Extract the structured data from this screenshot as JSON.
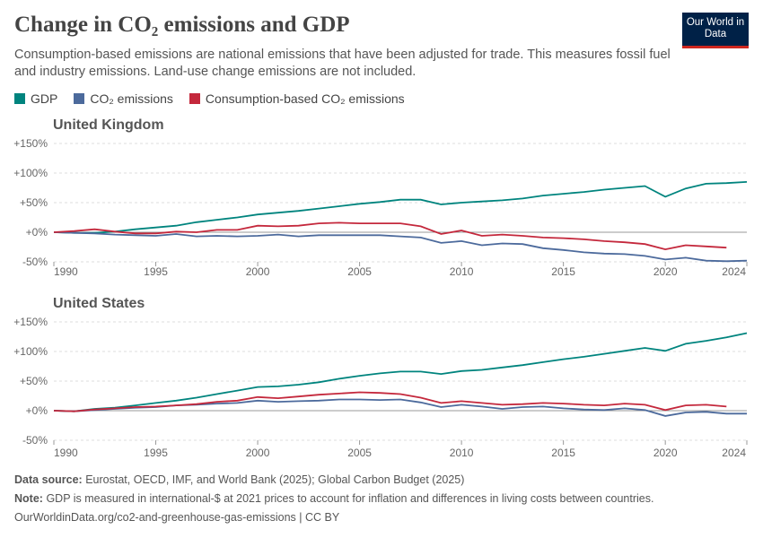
{
  "title": "Change in CO₂ emissions and GDP",
  "subtitle": "Consumption-based emissions are national emissions that have been adjusted for trade. This measures fossil fuel and industry emissions. Land-use change emissions are not included.",
  "logo": "Our World in Data",
  "footer": {
    "source_label": "Data source:",
    "source": "Eurostat, OECD, IMF, and World Bank (2025); Global Carbon Budget (2025)",
    "note_label": "Note:",
    "note": "GDP is measured in international-$ at 2021 prices to account for inflation and differences in living costs between countries.",
    "url": "OurWorldinData.org/co2-and-greenhouse-gas-emissions | CC BY"
  },
  "chart_data": [
    {
      "type": "line",
      "title": "United Kingdom",
      "ylim": [
        -50,
        150
      ],
      "yticks": [
        "+150%",
        "+100%",
        "+50%",
        "+0%",
        "-50%"
      ],
      "xticks": [
        "1990",
        "1995",
        "2000",
        "2005",
        "2010",
        "2015",
        "2020",
        "2024"
      ],
      "xstart": 1990,
      "series": [
        {
          "name": "GDP",
          "color": "#00847e",
          "values": [
            0,
            -1,
            -1,
            1,
            5,
            8,
            11,
            17,
            21,
            25,
            30,
            33,
            36,
            40,
            44,
            48,
            51,
            55,
            55,
            47,
            50,
            52,
            54,
            57,
            62,
            65,
            68,
            72,
            75,
            78,
            60,
            74,
            82,
            83,
            85
          ]
        },
        {
          "name": "CO₂ emissions",
          "color": "#4c6a9c",
          "values": [
            0,
            -1,
            -2,
            -4,
            -5,
            -6,
            -3,
            -7,
            -6,
            -7,
            -6,
            -4,
            -7,
            -5,
            -5,
            -5,
            -5,
            -7,
            -9,
            -18,
            -15,
            -22,
            -19,
            -20,
            -27,
            -30,
            -34,
            -36,
            -37,
            -40,
            -46,
            -43,
            -48,
            -49,
            -48
          ]
        },
        {
          "name": "Consumption-based CO₂ emissions",
          "color": "#c4283c",
          "values": [
            0,
            2,
            5,
            1,
            -2,
            -2,
            1,
            0,
            4,
            4,
            11,
            10,
            11,
            15,
            16,
            15,
            15,
            15,
            10,
            -3,
            3,
            -6,
            -4,
            -6,
            -9,
            -10,
            -12,
            -15,
            -17,
            -20,
            -29,
            -22,
            -24,
            -26
          ]
        }
      ]
    },
    {
      "type": "line",
      "title": "United States",
      "ylim": [
        -50,
        150
      ],
      "yticks": [
        "+150%",
        "+100%",
        "+50%",
        "+0%",
        "-50%"
      ],
      "xticks": [
        "1990",
        "1995",
        "2000",
        "2005",
        "2010",
        "2015",
        "2020",
        "2024"
      ],
      "xstart": 1990,
      "series": [
        {
          "name": "GDP",
          "color": "#00847e",
          "values": [
            0,
            -1,
            3,
            5,
            9,
            13,
            17,
            22,
            28,
            34,
            40,
            41,
            44,
            48,
            54,
            59,
            63,
            66,
            66,
            62,
            67,
            69,
            73,
            77,
            82,
            87,
            91,
            96,
            101,
            106,
            101,
            113,
            118,
            124,
            131
          ]
        },
        {
          "name": "CO₂ emissions",
          "color": "#4c6a9c",
          "values": [
            0,
            -1,
            1,
            3,
            5,
            6,
            9,
            10,
            12,
            13,
            17,
            15,
            16,
            17,
            19,
            19,
            18,
            19,
            14,
            6,
            10,
            7,
            3,
            6,
            7,
            4,
            2,
            1,
            4,
            1,
            -9,
            -3,
            -2,
            -5,
            -5
          ]
        },
        {
          "name": "Consumption-based CO₂ emissions",
          "color": "#c4283c",
          "values": [
            0,
            -1,
            2,
            4,
            6,
            7,
            9,
            11,
            15,
            17,
            23,
            21,
            24,
            27,
            29,
            31,
            30,
            28,
            22,
            13,
            16,
            13,
            10,
            11,
            13,
            12,
            10,
            9,
            12,
            10,
            1,
            9,
            10,
            7
          ]
        }
      ]
    }
  ]
}
